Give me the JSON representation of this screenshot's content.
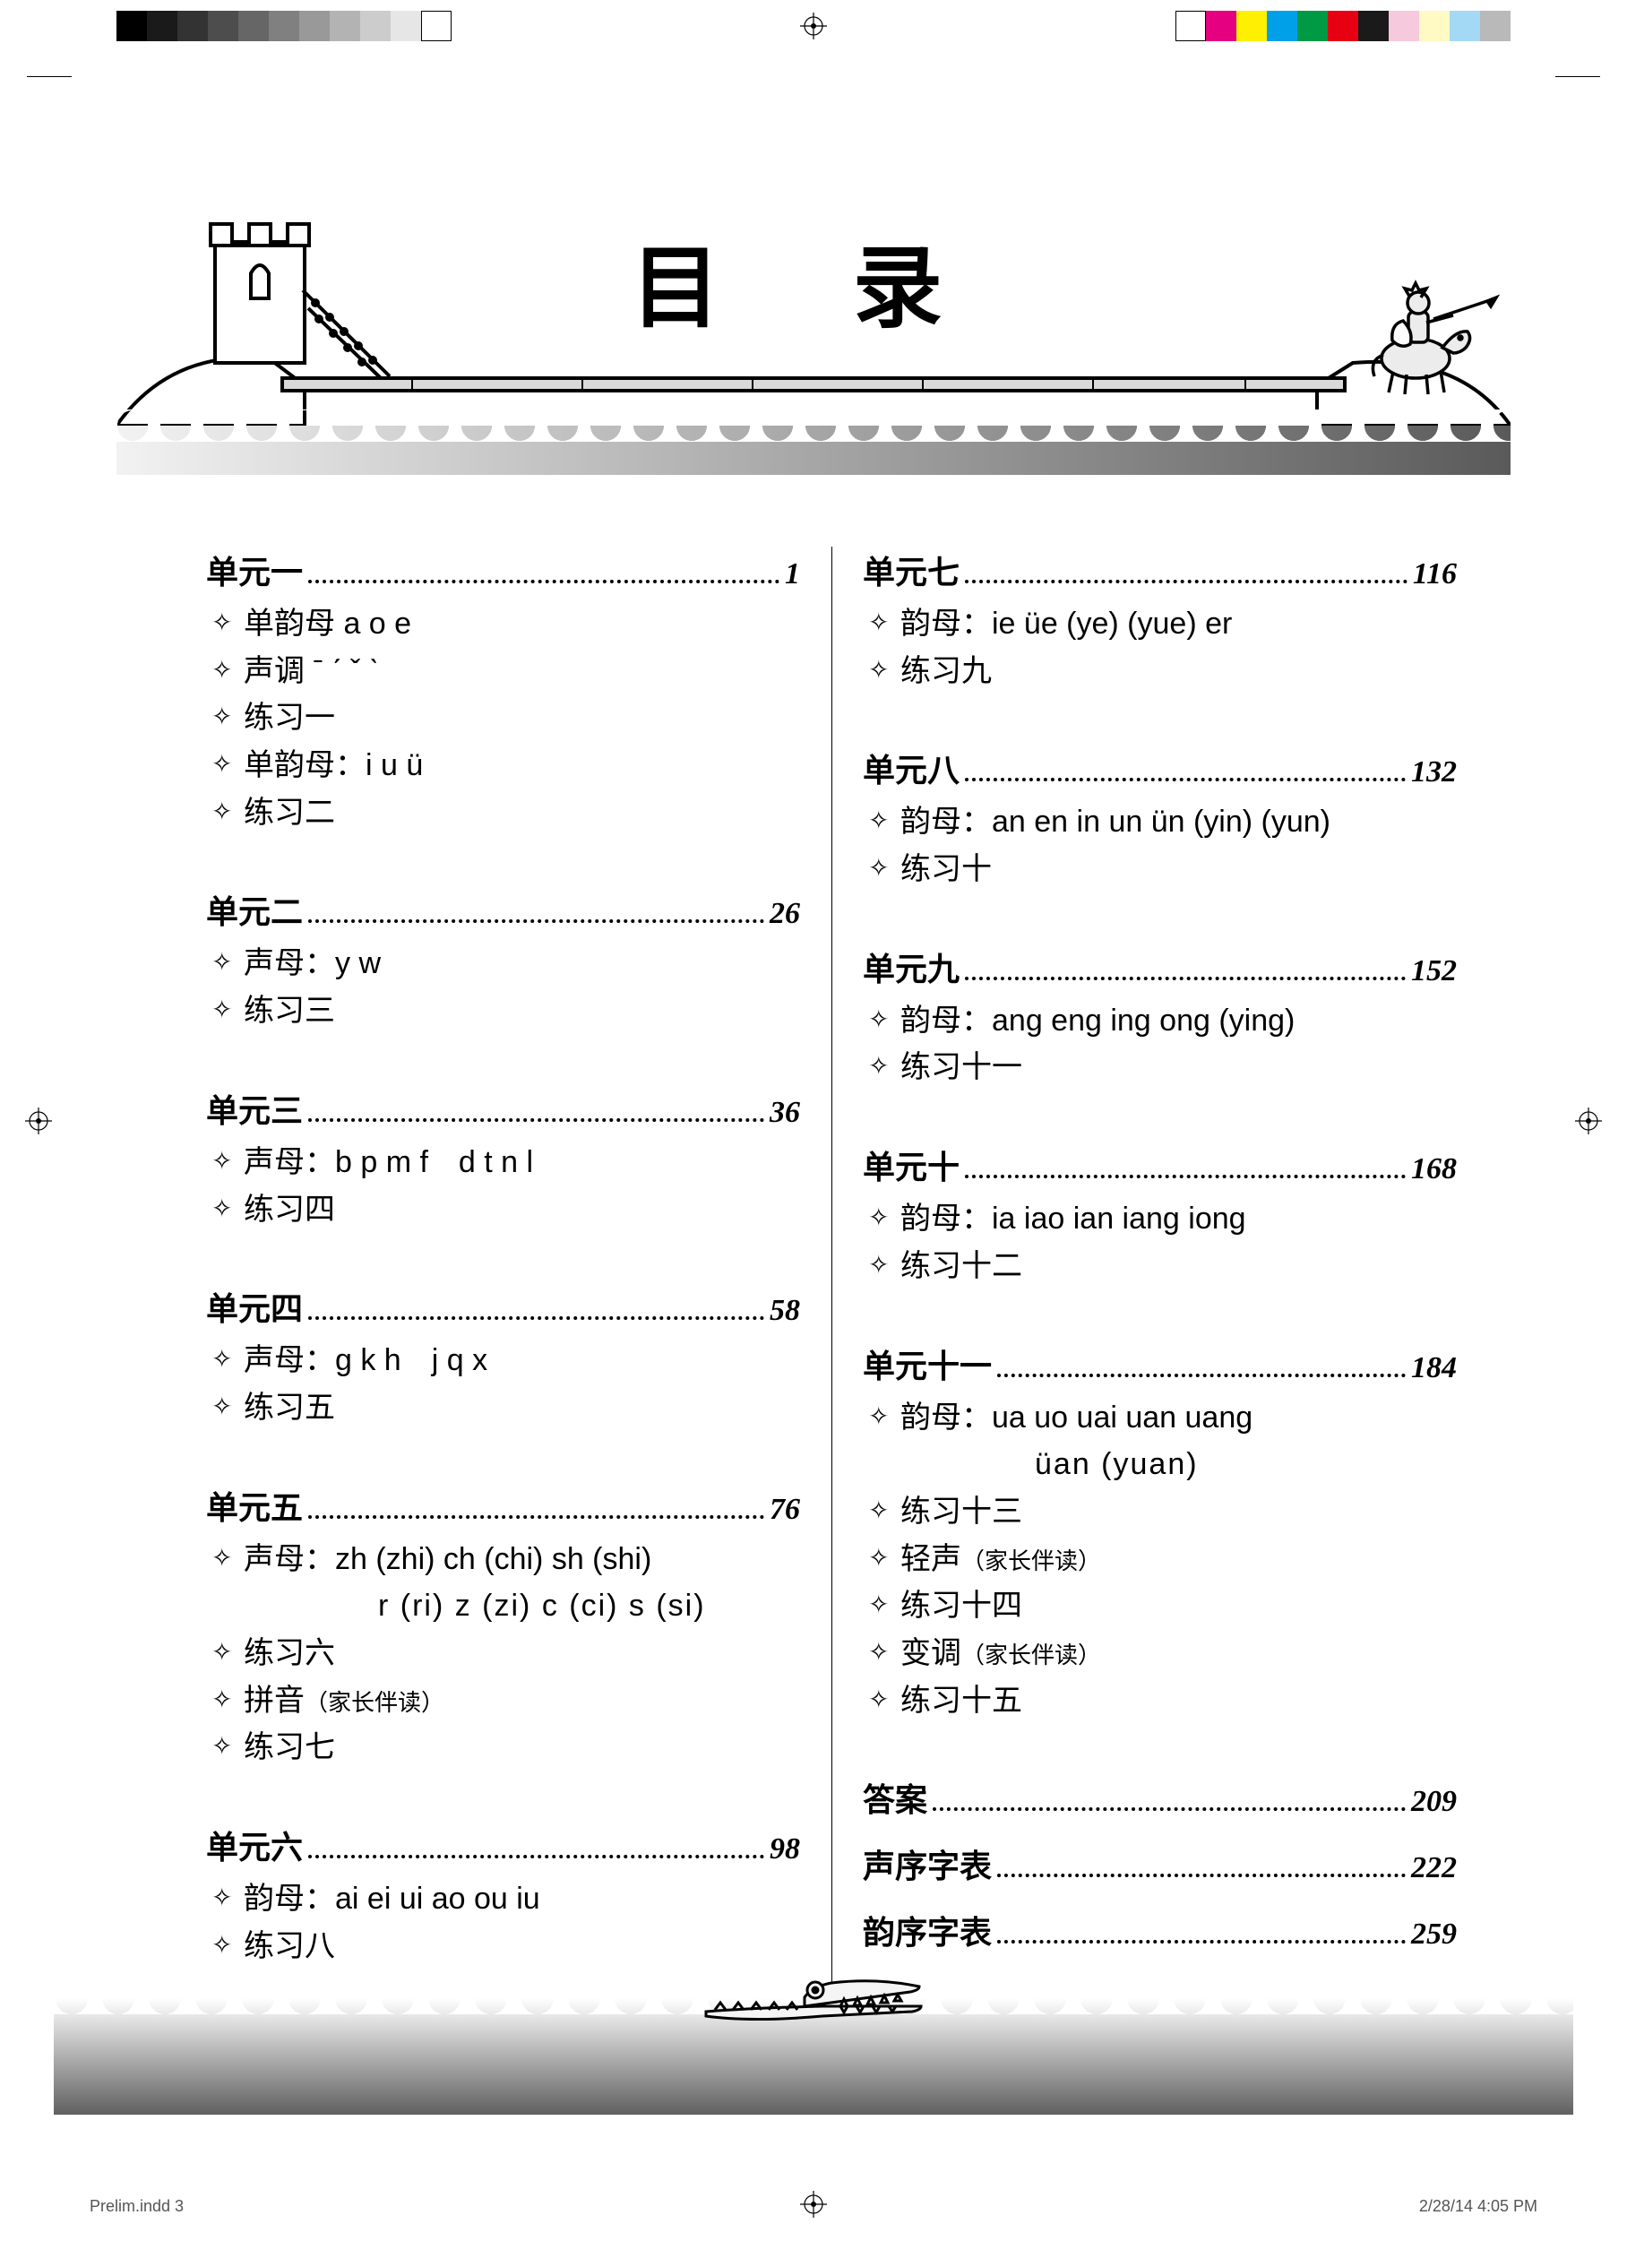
{
  "title": "目 录",
  "bullet_glyph": "✧",
  "reg_colors_left": [
    "#000000",
    "#1a1a1a",
    "#333333",
    "#4d4d4d",
    "#666666",
    "#808080",
    "#999999",
    "#b3b3b3",
    "#cccccc",
    "#e6e6e6",
    "#ffffff"
  ],
  "reg_colors_right": [
    "#ffffff",
    "#e4007f",
    "#ffef00",
    "#00a0e9",
    "#009944",
    "#e60012",
    "#1a1a1a",
    "#f7c9dd",
    "#fff9c4",
    "#a3d9f5",
    "#b9b9b9"
  ],
  "left_column": [
    {
      "name": "单元一",
      "page": "1",
      "items": [
        {
          "text": "单韵母 a o e"
        },
        {
          "text": "声调 ˉ ˊ ˇ ˋ"
        },
        {
          "text": "练习一"
        },
        {
          "text": "单韵母：i u ü"
        },
        {
          "text": "练习二"
        }
      ]
    },
    {
      "name": "单元二",
      "page": "26",
      "items": [
        {
          "text": "声母：y w"
        },
        {
          "text": "练习三"
        }
      ]
    },
    {
      "name": "单元三",
      "page": "36",
      "items": [
        {
          "text": "声母：b p m f　d t n l"
        },
        {
          "text": "练习四"
        }
      ]
    },
    {
      "name": "单元四",
      "page": "58",
      "items": [
        {
          "text": "声母：g k h　j q x"
        },
        {
          "text": "练习五"
        }
      ]
    },
    {
      "name": "单元五",
      "page": "76",
      "items": [
        {
          "text": "声母：zh (zhi) ch (chi) sh (shi)",
          "wrap": "r (ri) z (zi) c (ci) s (si)"
        },
        {
          "text": "练习六"
        },
        {
          "text": "拼音",
          "note": "（家长伴读）"
        },
        {
          "text": "练习七"
        }
      ]
    },
    {
      "name": "单元六",
      "page": "98",
      "items": [
        {
          "text": "韵母：ai ei ui ao ou iu"
        },
        {
          "text": "练习八"
        }
      ]
    }
  ],
  "right_column": [
    {
      "name": "单元七",
      "page": "116",
      "items": [
        {
          "text": "韵母：ie üe (ye) (yue) er"
        },
        {
          "text": "练习九"
        }
      ]
    },
    {
      "name": "单元八",
      "page": "132",
      "items": [
        {
          "text": "韵母：an en in un ün (yin) (yun)"
        },
        {
          "text": "练习十"
        }
      ]
    },
    {
      "name": "单元九",
      "page": "152",
      "items": [
        {
          "text": "韵母：ang eng ing ong (ying)"
        },
        {
          "text": "练习十一"
        }
      ]
    },
    {
      "name": "单元十",
      "page": "168",
      "items": [
        {
          "text": "韵母：ia iao ian iang iong"
        },
        {
          "text": "练习十二"
        }
      ]
    },
    {
      "name": "单元十一",
      "page": "184",
      "items": [
        {
          "text": "韵母：ua uo uai uan uang",
          "wrap": "üan (yuan)"
        },
        {
          "text": "练习十三"
        },
        {
          "text": "轻声",
          "note": "（家长伴读）"
        },
        {
          "text": "练习十四"
        },
        {
          "text": "变调",
          "note": "（家长伴读）"
        },
        {
          "text": "练习十五"
        }
      ]
    }
  ],
  "appendix": [
    {
      "name": "答案",
      "page": "209"
    },
    {
      "name": "声序字表",
      "page": "222"
    },
    {
      "name": "韵序字表",
      "page": "259"
    }
  ],
  "footer_left": "Prelim.indd   3",
  "footer_right": "2/28/14   4:05 PM"
}
